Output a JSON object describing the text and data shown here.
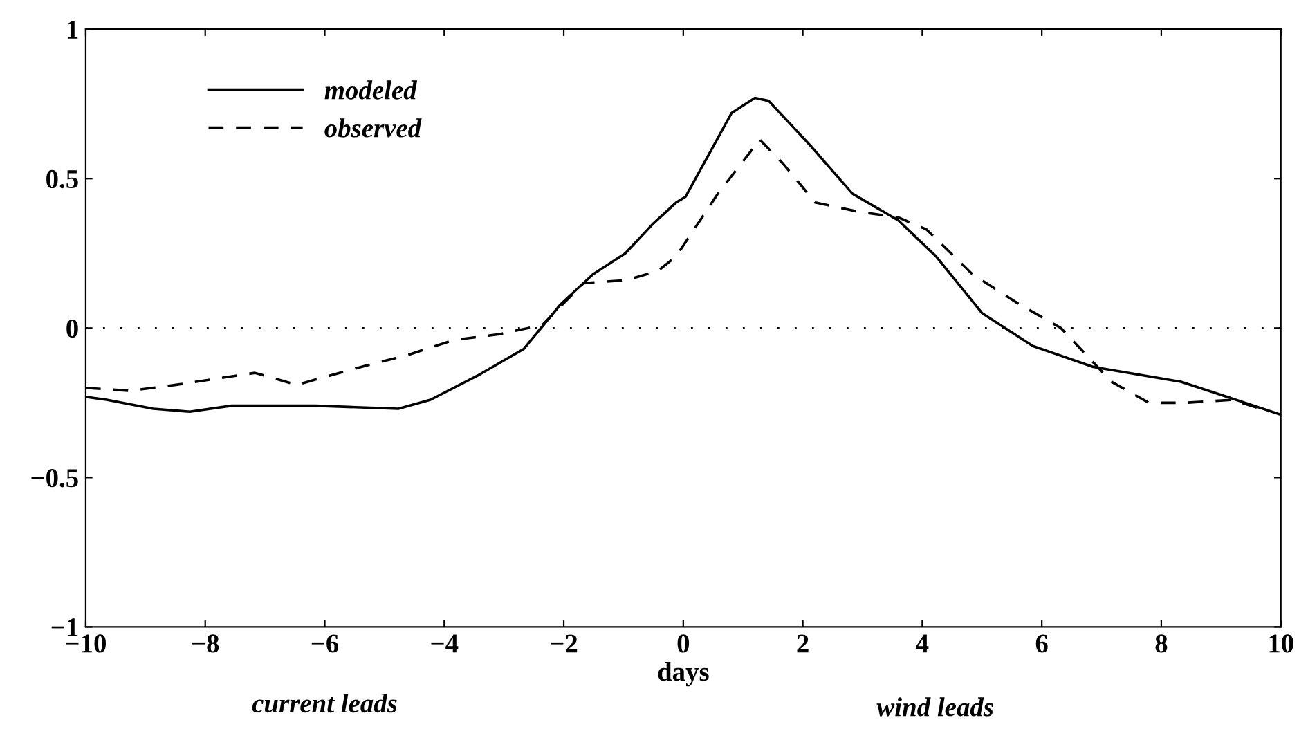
{
  "chart_data": {
    "type": "line",
    "xlabel": "days",
    "xlim": [
      -10,
      10
    ],
    "ylim": [
      -1,
      1
    ],
    "xticks": [
      {
        "value": -10,
        "label": "−10"
      },
      {
        "value": -8,
        "label": "−8"
      },
      {
        "value": -6,
        "label": "−6"
      },
      {
        "value": -4,
        "label": "−4"
      },
      {
        "value": -2,
        "label": "−2"
      },
      0,
      2,
      4,
      6,
      8,
      10
    ],
    "yticks": [
      {
        "value": -1,
        "label": "−1"
      },
      {
        "value": -0.5,
        "label": "−0.5"
      },
      0,
      0.5,
      1
    ],
    "grid": false,
    "legend": "top left",
    "marker": "none",
    "series": [
      {
        "name": "modeled",
        "color": "#000000",
        "line_style": "solid",
        "x": [
          -10,
          -9.65,
          -8.87,
          -8.26,
          -7.56,
          -6.16,
          -4.77,
          -4.23,
          -3.45,
          -2.67,
          -2.05,
          -1.51,
          -0.97,
          -0.5,
          -0.12,
          0.04,
          0.81,
          1.2,
          1.43,
          2.13,
          2.83,
          3.6,
          4.23,
          5.0,
          5.85,
          6.86,
          8.33,
          9.1,
          10
        ],
        "values": [
          -0.23,
          -0.24,
          -0.27,
          -0.28,
          -0.26,
          -0.26,
          -0.27,
          -0.24,
          -0.16,
          -0.07,
          0.08,
          0.18,
          0.25,
          0.35,
          0.42,
          0.44,
          0.72,
          0.77,
          0.76,
          0.61,
          0.45,
          0.36,
          0.24,
          0.05,
          -0.06,
          -0.13,
          -0.18,
          -0.23,
          -0.29
        ]
      },
      {
        "name": "observed",
        "color": "#000000",
        "line_style": "dashed",
        "x": [
          -10,
          -9.26,
          -8.49,
          -7.17,
          -6.47,
          -5.39,
          -4.61,
          -3.84,
          -3.06,
          -2.36,
          -1.67,
          -0.97,
          -0.43,
          -0.12,
          0.58,
          1.28,
          1.67,
          2.21,
          2.91,
          3.6,
          4.07,
          4.84,
          5.62,
          6.32,
          7.17,
          7.79,
          8.41,
          9.19,
          9.81
        ],
        "values": [
          -0.2,
          -0.21,
          -0.19,
          -0.15,
          -0.19,
          -0.13,
          -0.09,
          -0.04,
          -0.02,
          0.01,
          0.15,
          0.16,
          0.19,
          0.24,
          0.45,
          0.63,
          0.55,
          0.42,
          0.39,
          0.37,
          0.33,
          0.18,
          0.08,
          0.0,
          -0.18,
          -0.25,
          -0.25,
          -0.24,
          -0.28
        ]
      }
    ],
    "ref_lines": [
      {
        "axis": "y",
        "value": 0,
        "line_style": "dotted",
        "color": "#000000"
      }
    ],
    "annotations": [
      "current leads",
      "wind leads"
    ]
  }
}
